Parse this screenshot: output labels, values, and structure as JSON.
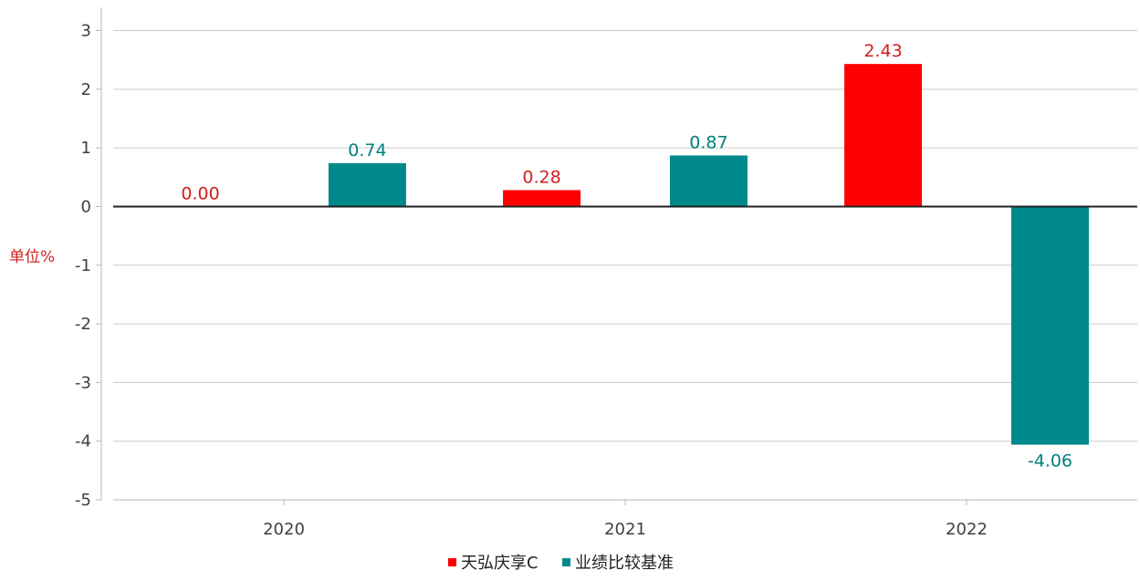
{
  "chart_data": {
    "type": "bar",
    "categories": [
      "2020",
      "2021",
      "2022"
    ],
    "series": [
      {
        "name": "天弘庆享C",
        "values": [
          0.0,
          0.28,
          2.43
        ],
        "color": "#ff0000",
        "label_color": "#d21e1e"
      },
      {
        "name": "业绩比较基准",
        "values": [
          0.74,
          0.87,
          -4.06
        ],
        "color": "#00898a",
        "label_color": "#007f80"
      }
    ],
    "data_labels": [
      [
        "0.00",
        "0.28",
        "2.43"
      ],
      [
        "0.74",
        "0.87",
        "-4.06"
      ]
    ],
    "ylim": [
      -5,
      3
    ],
    "yticks": [
      3,
      2,
      1,
      0,
      -1,
      -2,
      -3,
      -4,
      -5
    ],
    "ylabel": "单位%",
    "xlabel": "",
    "title": "",
    "grid": true,
    "legend": "bottom-center"
  }
}
